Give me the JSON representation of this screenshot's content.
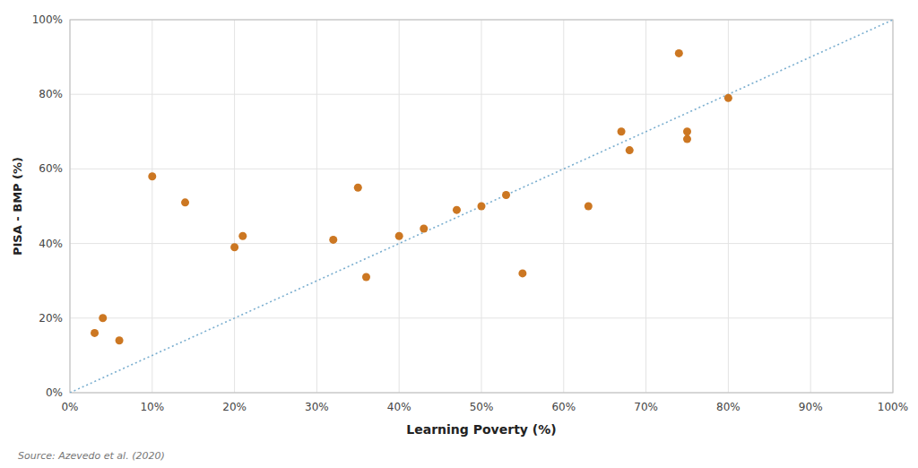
{
  "chart_data": {
    "type": "scatter",
    "x": [
      3,
      4,
      6,
      10,
      14,
      20,
      21,
      32,
      35,
      36,
      40,
      43,
      47,
      50,
      53,
      55,
      63,
      67,
      68,
      74,
      75,
      75,
      80
    ],
    "y": [
      16,
      20,
      14,
      58,
      51,
      39,
      42,
      41,
      55,
      31,
      42,
      44,
      49,
      50,
      53,
      32,
      50,
      70,
      65,
      91,
      70,
      68,
      79
    ],
    "color": "#CC7722",
    "xlabel": "Learning Poverty (%)",
    "ylabel": "PISA - BMP (%)",
    "xlim": [
      0,
      100
    ],
    "ylim": [
      0,
      100
    ],
    "xticks": [
      {
        "value": 0,
        "label": "0%"
      },
      {
        "value": 10,
        "label": "10%"
      },
      {
        "value": 20,
        "label": "20%"
      },
      {
        "value": 30,
        "label": "30%"
      },
      {
        "value": 40,
        "label": "40%"
      },
      {
        "value": 50,
        "label": "50%"
      },
      {
        "value": 60,
        "label": "60%"
      },
      {
        "value": 70,
        "label": "70%"
      },
      {
        "value": 80,
        "label": "80%"
      },
      {
        "value": 90,
        "label": "90%"
      },
      {
        "value": 100,
        "label": "100%"
      }
    ],
    "yticks": [
      {
        "value": 0,
        "label": "0%"
      },
      {
        "value": 20,
        "label": "20%"
      },
      {
        "value": 40,
        "label": "40%"
      },
      {
        "value": 60,
        "label": "60%"
      },
      {
        "value": 80,
        "label": "80%"
      },
      {
        "value": 100,
        "label": "100%"
      }
    ],
    "grid": true,
    "reference_line": {
      "x": [
        0,
        100
      ],
      "y": [
        0,
        100
      ],
      "color": "#7aaecf",
      "line_style": "dotted"
    },
    "source": "Source: Azevedo et al. (2020)"
  }
}
